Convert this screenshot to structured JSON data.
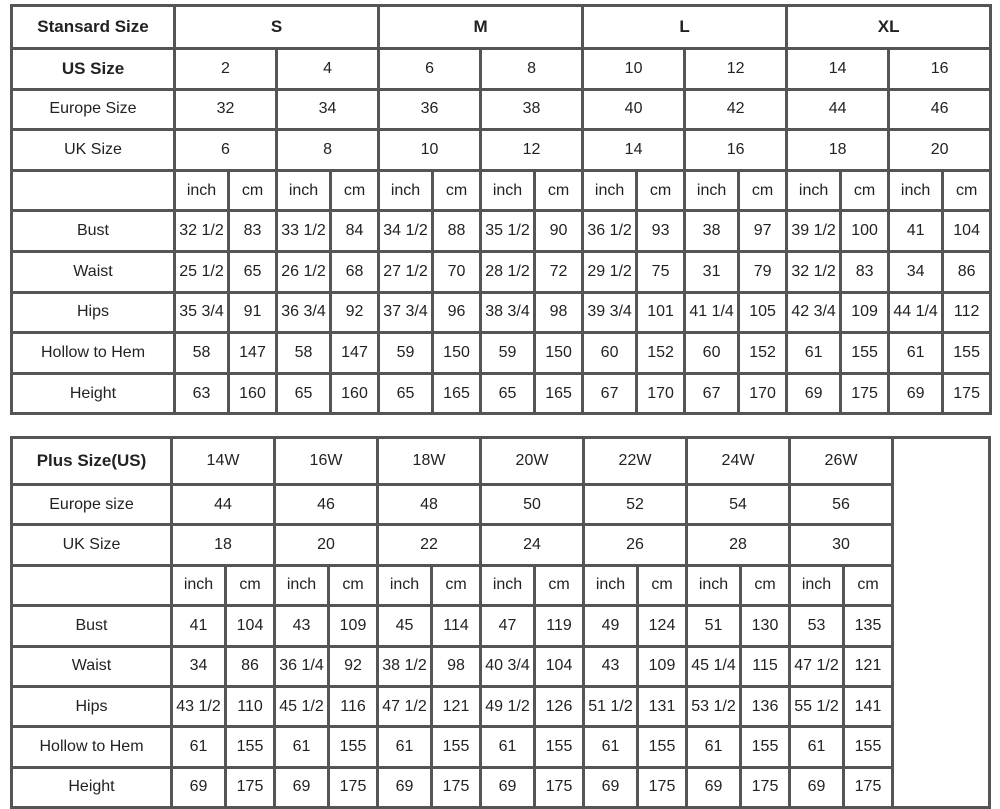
{
  "standard": {
    "header_label": "Stansard Size",
    "groups": [
      "S",
      "M",
      "L",
      "XL"
    ],
    "size_rows": [
      {
        "label": "US Size",
        "bold": true,
        "values": [
          "2",
          "4",
          "6",
          "8",
          "10",
          "12",
          "14",
          "16"
        ]
      },
      {
        "label": "Europe Size",
        "values": [
          "32",
          "34",
          "36",
          "38",
          "40",
          "42",
          "44",
          "46"
        ]
      },
      {
        "label": "UK Size",
        "values": [
          "6",
          "8",
          "10",
          "12",
          "14",
          "16",
          "18",
          "20"
        ]
      }
    ],
    "unit_labels": [
      "inch",
      "cm"
    ],
    "measurements": [
      {
        "label": "Bust",
        "values": [
          "32 1/2",
          "83",
          "33 1/2",
          "84",
          "34 1/2",
          "88",
          "35 1/2",
          "90",
          "36 1/2",
          "93",
          "38",
          "97",
          "39 1/2",
          "100",
          "41",
          "104"
        ]
      },
      {
        "label": "Waist",
        "values": [
          "25 1/2",
          "65",
          "26 1/2",
          "68",
          "27 1/2",
          "70",
          "28 1/2",
          "72",
          "29 1/2",
          "75",
          "31",
          "79",
          "32 1/2",
          "83",
          "34",
          "86"
        ]
      },
      {
        "label": "Hips",
        "values": [
          "35 3/4",
          "91",
          "36 3/4",
          "92",
          "37 3/4",
          "96",
          "38 3/4",
          "98",
          "39 3/4",
          "101",
          "41 1/4",
          "105",
          "42 3/4",
          "109",
          "44 1/4",
          "112"
        ]
      },
      {
        "label": "Hollow to Hem",
        "values": [
          "58",
          "147",
          "58",
          "147",
          "59",
          "150",
          "59",
          "150",
          "60",
          "152",
          "60",
          "152",
          "61",
          "155",
          "61",
          "155"
        ]
      },
      {
        "label": "Height",
        "values": [
          "63",
          "160",
          "65",
          "160",
          "65",
          "165",
          "65",
          "165",
          "67",
          "170",
          "67",
          "170",
          "69",
          "175",
          "69",
          "175"
        ]
      }
    ]
  },
  "plus": {
    "header_label": "Plus Size(US)",
    "sizes": [
      "14W",
      "16W",
      "18W",
      "20W",
      "22W",
      "24W",
      "26W"
    ],
    "size_rows": [
      {
        "label": "Europe size",
        "values": [
          "44",
          "46",
          "48",
          "50",
          "52",
          "54",
          "56"
        ]
      },
      {
        "label": "UK Size",
        "values": [
          "18",
          "20",
          "22",
          "24",
          "26",
          "28",
          "30"
        ]
      }
    ],
    "unit_labels": [
      "inch",
      "cm"
    ],
    "measurements": [
      {
        "label": "Bust",
        "values": [
          "41",
          "104",
          "43",
          "109",
          "45",
          "114",
          "47",
          "119",
          "49",
          "124",
          "51",
          "130",
          "53",
          "135"
        ]
      },
      {
        "label": "Waist",
        "values": [
          "34",
          "86",
          "36 1/4",
          "92",
          "38 1/2",
          "98",
          "40 3/4",
          "104",
          "43",
          "109",
          "45 1/4",
          "115",
          "47 1/2",
          "121"
        ]
      },
      {
        "label": "Hips",
        "values": [
          "43 1/2",
          "110",
          "45 1/2",
          "116",
          "47 1/2",
          "121",
          "49 1/2",
          "126",
          "51 1/2",
          "131",
          "53 1/2",
          "136",
          "55 1/2",
          "141"
        ]
      },
      {
        "label": "Hollow to Hem",
        "values": [
          "61",
          "155",
          "61",
          "155",
          "61",
          "155",
          "61",
          "155",
          "61",
          "155",
          "61",
          "155",
          "61",
          "155"
        ]
      },
      {
        "label": "Height",
        "values": [
          "69",
          "175",
          "69",
          "175",
          "69",
          "175",
          "69",
          "175",
          "69",
          "175",
          "69",
          "175",
          "69",
          "175"
        ]
      }
    ]
  }
}
